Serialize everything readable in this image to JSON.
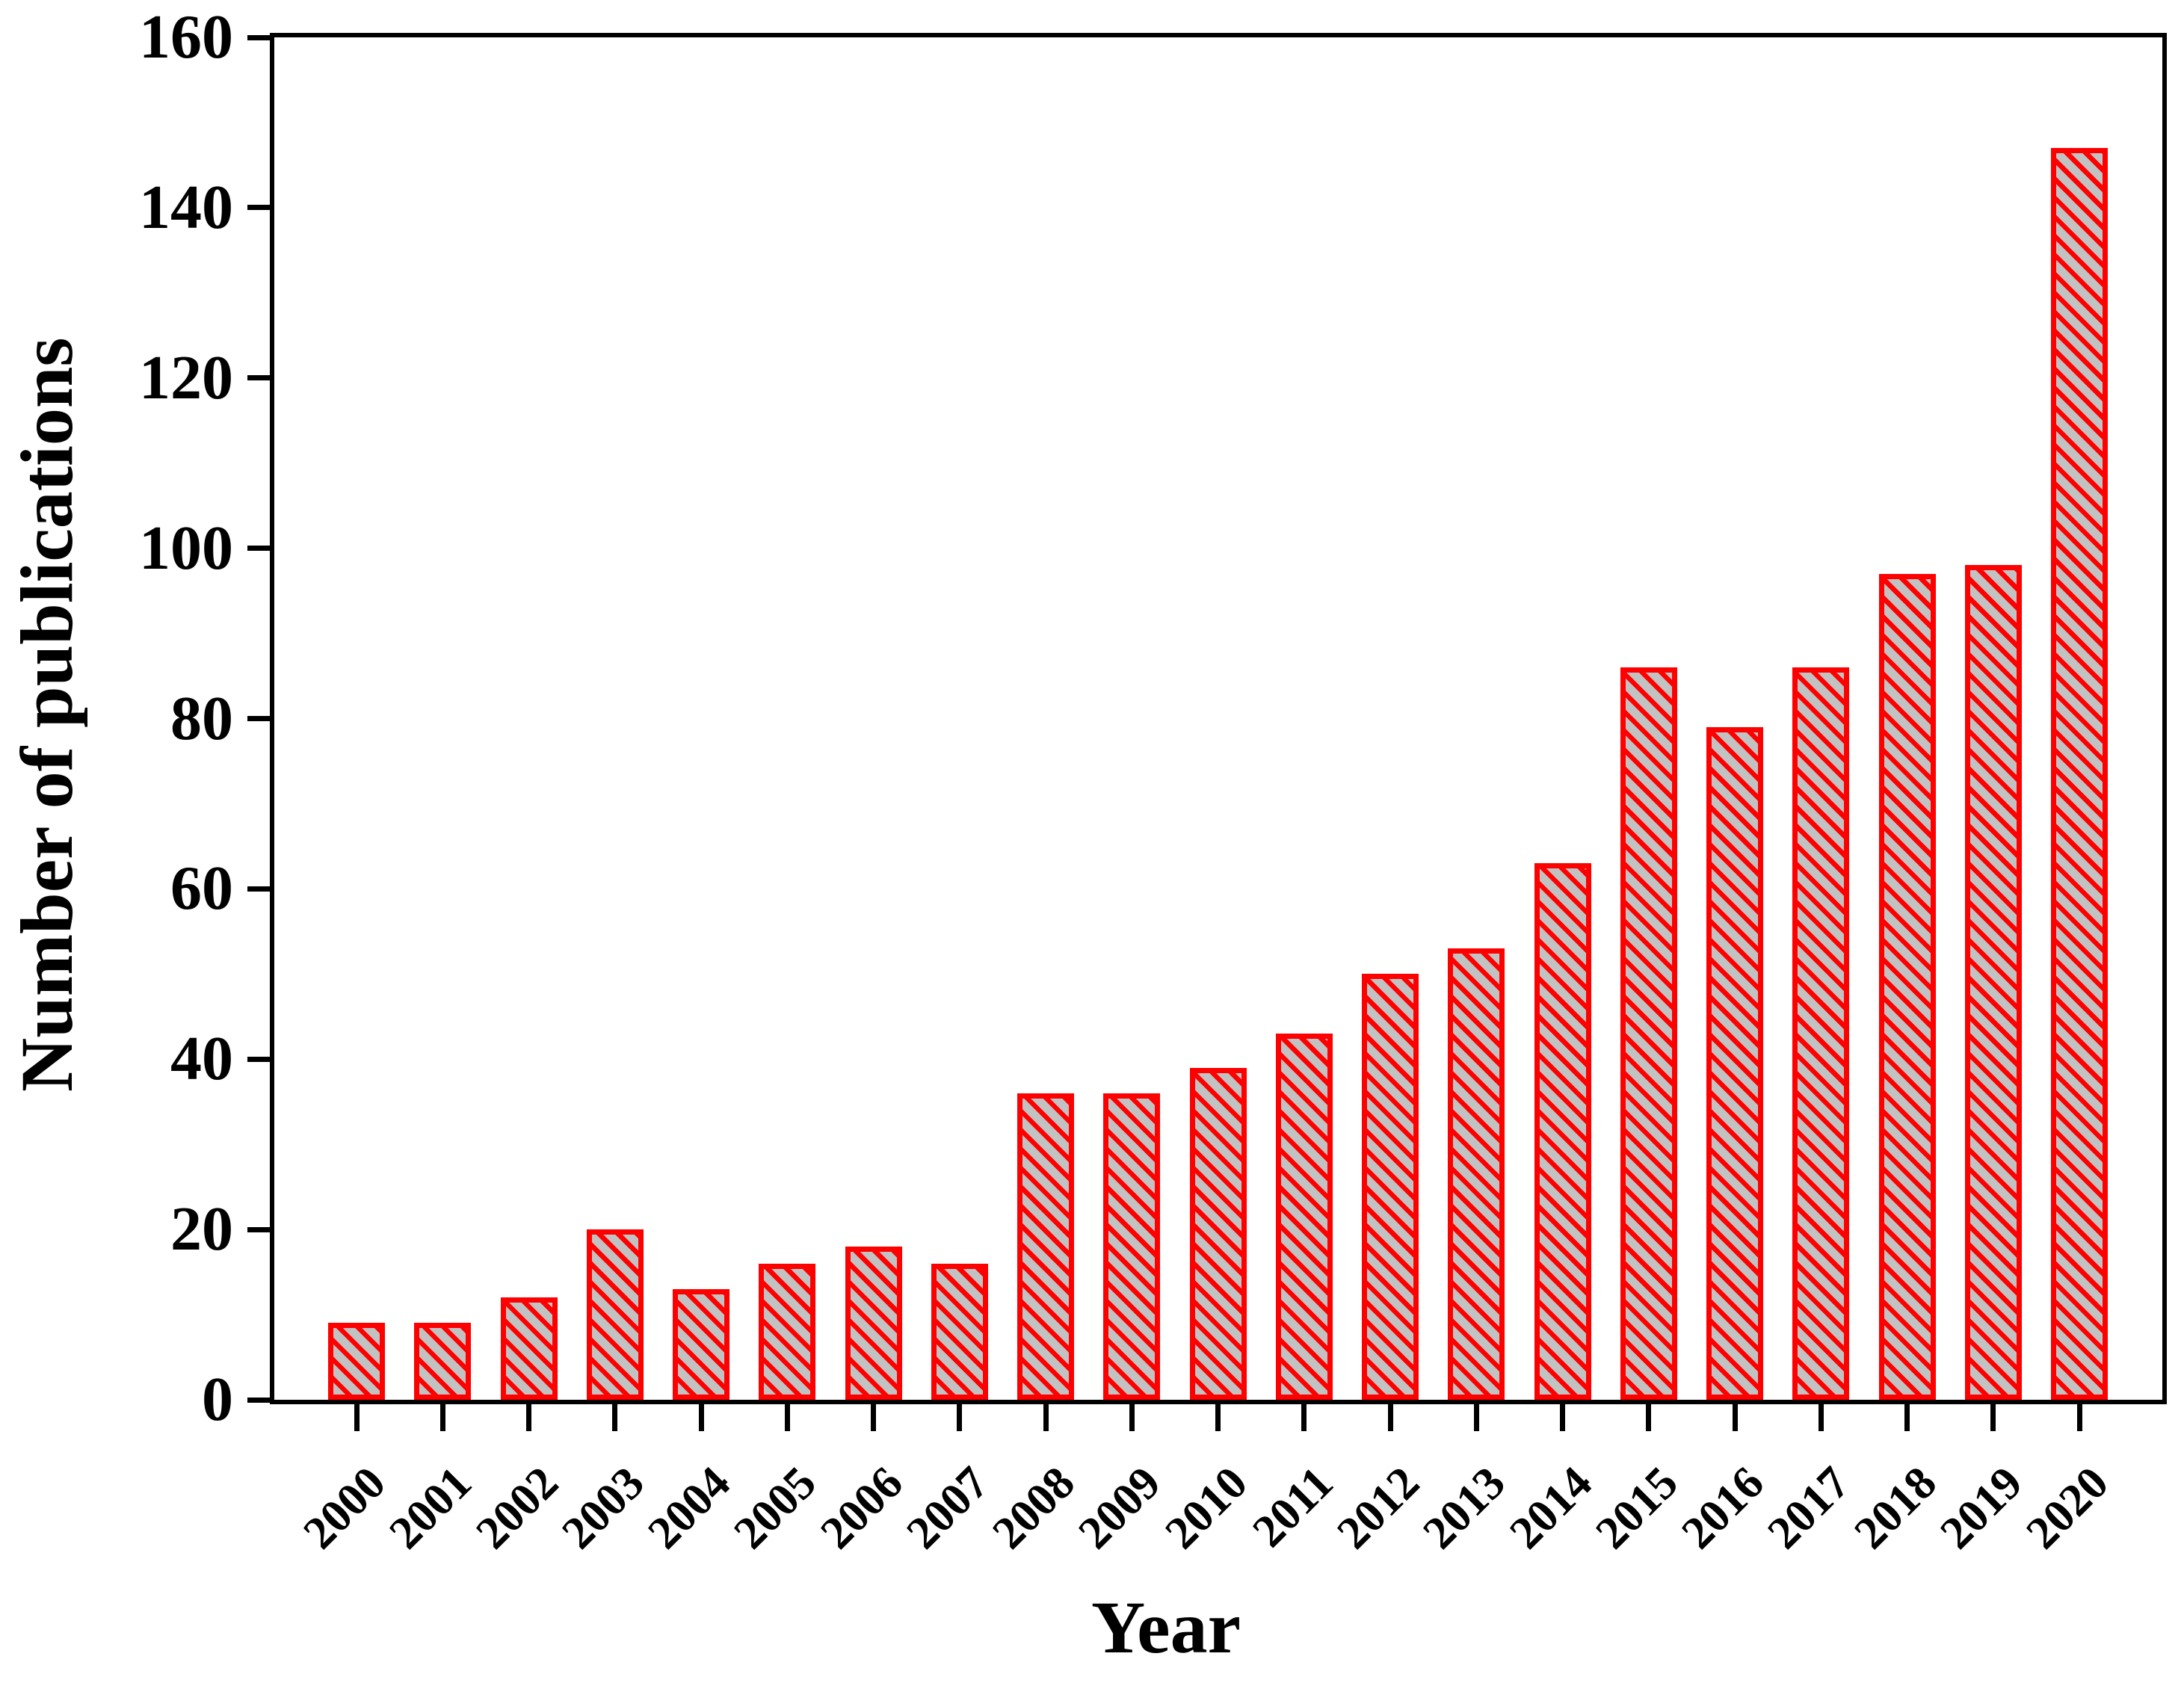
{
  "figure": {
    "background": "#ffffff"
  },
  "chart_data": {
    "type": "bar",
    "title": "",
    "xlabel": "Year",
    "ylabel": "Number of publications",
    "categories": [
      "2000",
      "2001",
      "2002",
      "2003",
      "2004",
      "2005",
      "2006",
      "2007",
      "2008",
      "2009",
      "2010",
      "2011",
      "2012",
      "2013",
      "2014",
      "2015",
      "2016",
      "2017",
      "2018",
      "2019",
      "2020"
    ],
    "values": [
      9,
      9,
      12,
      20,
      13,
      16,
      18,
      16,
      36,
      36,
      39,
      43,
      50,
      53,
      63,
      86,
      79,
      86,
      97,
      98,
      147
    ],
    "ylim": [
      0,
      160
    ],
    "yticks": [
      0,
      20,
      40,
      60,
      80,
      100,
      120,
      140,
      160
    ],
    "grid": false,
    "legend": "none",
    "frame": "full-box",
    "bar_style": {
      "fill": "#c2c2c2",
      "hatch": "diagonal-backslash",
      "hatch_color": "#ff0000",
      "border_color": "#ff0000"
    },
    "axis_color": "#000000",
    "text_color": "#000000"
  }
}
